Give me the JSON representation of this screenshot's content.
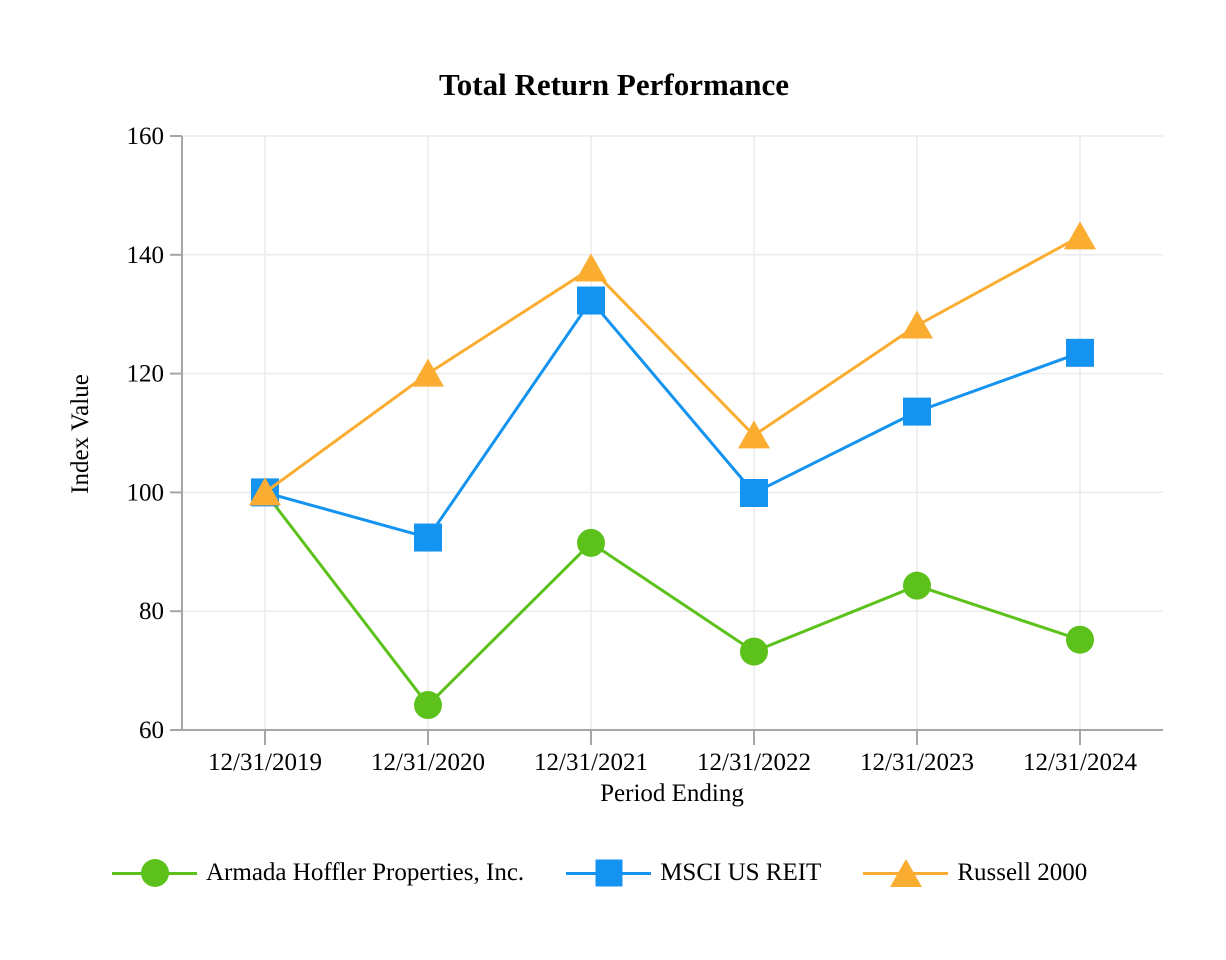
{
  "page": {
    "background_color": "#FFFFFF"
  },
  "chart_data": {
    "type": "line",
    "title": "Total Return Performance",
    "xlabel": "Period Ending",
    "ylabel": "Index Value",
    "categories": [
      "12/31/2019",
      "12/31/2020",
      "12/31/2021",
      "12/31/2022",
      "12/31/2023",
      "12/31/2024"
    ],
    "y_ticks": [
      60,
      80,
      100,
      120,
      140,
      160
    ],
    "ylim": [
      60,
      160
    ],
    "grid": true,
    "legend_position": "bottom",
    "series": [
      {
        "name": "Armada Hoffler Properties, Inc.",
        "marker": "circle",
        "color": "#5CC21B",
        "values": [
          100.0,
          64.2,
          91.5,
          73.2,
          84.3,
          75.2
        ]
      },
      {
        "name": "MSCI US REIT",
        "marker": "square",
        "color": "#1493F0",
        "values": [
          100.0,
          92.4,
          132.3,
          99.9,
          113.6,
          123.5
        ]
      },
      {
        "name": "Russell 2000",
        "marker": "triangle",
        "color": "#FBAD32",
        "values": [
          100.0,
          120.0,
          137.7,
          109.6,
          128.1,
          143.1
        ]
      }
    ],
    "axis_color": "#A6A6A6",
    "grid_color": "#EBEBEB",
    "text_color": "#000000"
  }
}
